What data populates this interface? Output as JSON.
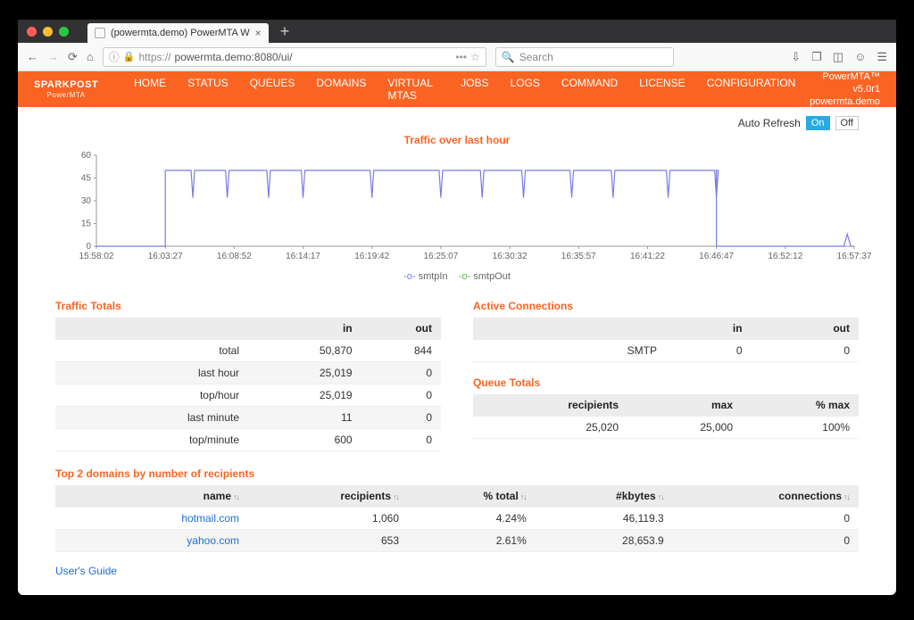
{
  "browser": {
    "tab_title": "(powermta.demo) PowerMTA W",
    "url_prefix": "https://",
    "url_rest": "powermta.demo:8080/ui/",
    "search_placeholder": "Search"
  },
  "appnav": {
    "logo_main": "SPARKPOST",
    "logo_sub": "PowerMTA",
    "items": [
      "HOME",
      "STATUS",
      "QUEUES",
      "DOMAINS",
      "VIRTUAL MTAS",
      "JOBS",
      "LOGS",
      "COMMAND",
      "LICENSE",
      "CONFIGURATION"
    ],
    "active_index": 0,
    "right_line1": "PowerMTA™ v5.0r1",
    "right_line2": "powermta.demo"
  },
  "autorefresh": {
    "label": "Auto Refresh",
    "on": "On",
    "off": "Off"
  },
  "chart": {
    "title": "Traffic over last hour",
    "y_ticks": [
      60,
      45,
      30,
      15,
      0
    ],
    "x_labels": [
      "15:58:02",
      "16:03:27",
      "16:08:52",
      "16:14:17",
      "16:19:42",
      "16:25:07",
      "16:30:32",
      "16:35:57",
      "16:41:22",
      "16:46:47",
      "16:52:12",
      "16:57:37"
    ],
    "series": [
      {
        "name": "smtpIn",
        "color": "#7b7be6"
      },
      {
        "name": "smtpOut",
        "color": "#5ab85a"
      }
    ],
    "plateau_value": 50,
    "rise_x_index": 1,
    "fall_x_index": 9,
    "dip_x_indices": [
      1.4,
      1.9,
      2.5,
      3.0,
      4.0,
      5.0,
      5.6,
      6.2,
      6.9,
      7.5,
      8.3,
      9.0
    ],
    "tail_bump_x_index": 10.9,
    "tail_bump_value": 8,
    "background": "#ffffff",
    "axis_color": "#888888",
    "tick_font_size": 10
  },
  "legend": {
    "sep": "-o-"
  },
  "traffic_totals": {
    "title": "Traffic Totals",
    "headers": [
      "",
      "in",
      "out"
    ],
    "rows": [
      {
        "label": "total",
        "in": "50,870",
        "out": "844"
      },
      {
        "label": "last hour",
        "in": "25,019",
        "out": "0"
      },
      {
        "label": "top/hour",
        "in": "25,019",
        "out": "0"
      },
      {
        "label": "last minute",
        "in": "11",
        "out": "0"
      },
      {
        "label": "top/minute",
        "in": "600",
        "out": "0"
      }
    ]
  },
  "active_connections": {
    "title": "Active Connections",
    "headers": [
      "",
      "in",
      "out"
    ],
    "rows": [
      {
        "label": "SMTP",
        "in": "0",
        "out": "0"
      }
    ]
  },
  "queue_totals": {
    "title": "Queue Totals",
    "headers": [
      "recipients",
      "max",
      "% max"
    ],
    "rows": [
      {
        "recipients": "25,020",
        "max": "25,000",
        "pct": "100%"
      }
    ]
  },
  "top_domains": {
    "title": "Top 2 domains by number of recipients",
    "headers": [
      "name",
      "recipients",
      "% total",
      "#kbytes",
      "connections"
    ],
    "rows": [
      {
        "name": "hotmail.com",
        "recipients": "1,060",
        "pct": "4.24%",
        "kbytes": "46,119.3",
        "conn": "0"
      },
      {
        "name": "yahoo.com",
        "recipients": "653",
        "pct": "2.61%",
        "kbytes": "28,653.9",
        "conn": "0"
      }
    ]
  },
  "footer": {
    "users_guide": "User's Guide"
  }
}
